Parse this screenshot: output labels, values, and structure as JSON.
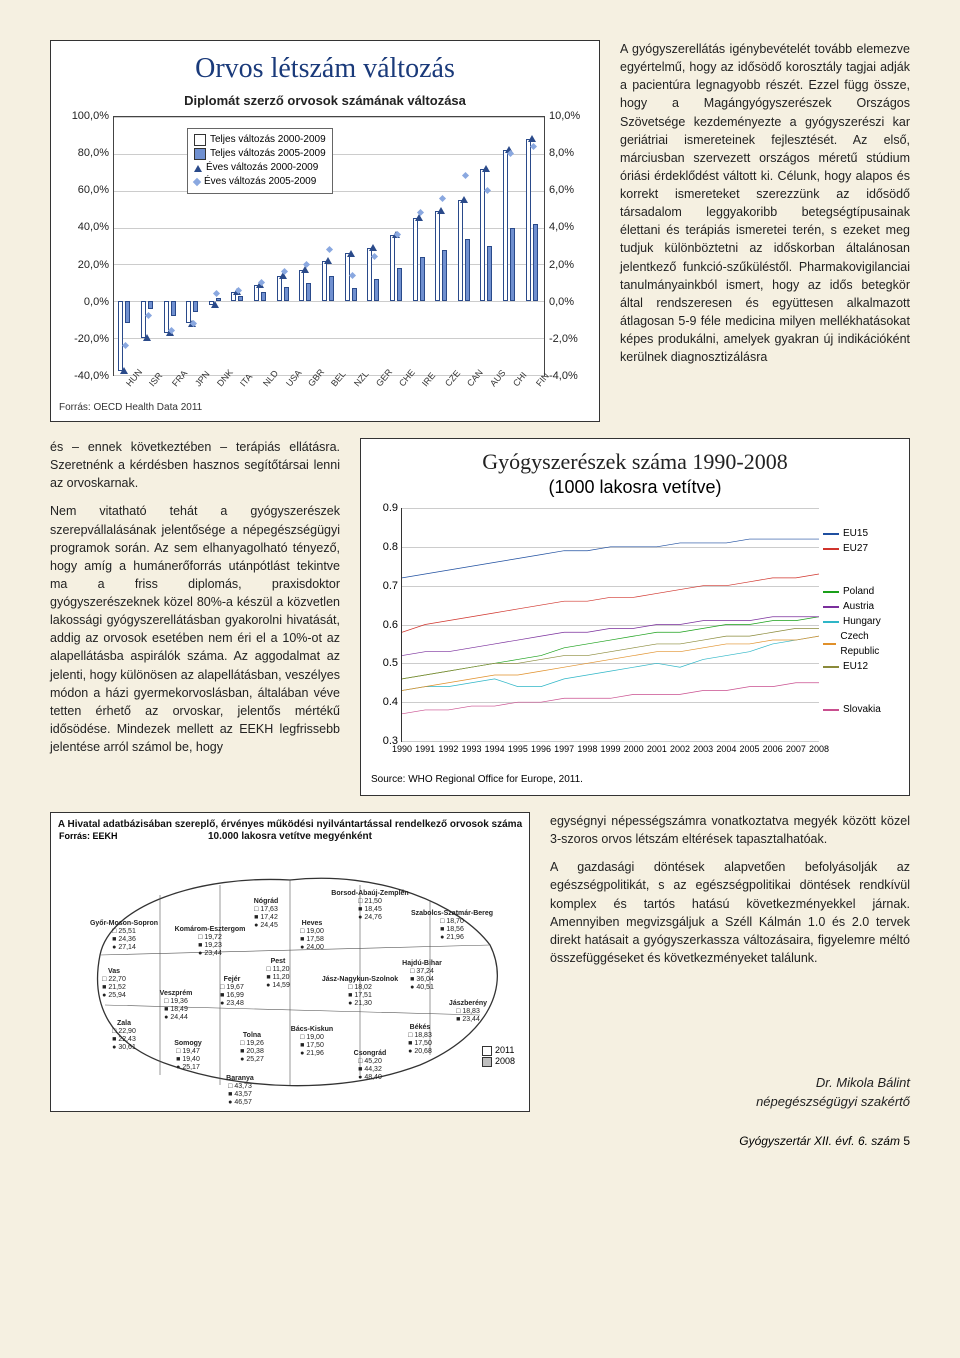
{
  "chart1": {
    "type": "bar+line",
    "title": "Orvos létszám változás",
    "subtitle": "Diplomát szerző orvosok számának változása",
    "title_color": "#1a3a7a",
    "legend": [
      {
        "label": "Teljes változás 2000-2009",
        "fill": "#ffffff",
        "marker": "square"
      },
      {
        "label": "Teljes változás 2005-2009",
        "fill": "#7090d0",
        "marker": "square"
      },
      {
        "label": "Éves változás 2000-2009",
        "fill": "none",
        "marker": "triangle"
      },
      {
        "label": "Éves változás 2005-2009",
        "fill": "none",
        "marker": "diamond"
      }
    ],
    "left_axis": {
      "min": -40,
      "max": 100,
      "step": 20,
      "ticks": [
        "100,0%",
        "80,0%",
        "60,0%",
        "40,0%",
        "20,0%",
        "0,0%",
        "-20,0%",
        "-40,0%"
      ],
      "suffix": "%"
    },
    "right_axis": {
      "min": -4,
      "max": 10,
      "step": 2,
      "ticks": [
        "10,0%",
        "8,0%",
        "6,0%",
        "4,0%",
        "2,0%",
        "0,0%",
        "-2,0%",
        "-4,0%"
      ],
      "suffix": "%"
    },
    "categories": [
      "HUN",
      "ISR",
      "FRA",
      "JPN",
      "DNK",
      "ITA",
      "NLD",
      "USA",
      "GBR",
      "BEL",
      "NZL",
      "GER",
      "CHE",
      "IRE",
      "CZE",
      "CAN",
      "AUS",
      "CHI",
      "FIN"
    ],
    "bars_2000_2009": [
      -38,
      -20,
      -17,
      -12,
      -2,
      5,
      9,
      14,
      17,
      22,
      26,
      29,
      36,
      45,
      49,
      55,
      72,
      82,
      88
    ],
    "bars_2005_2009": [
      -12,
      -4,
      -8,
      -6,
      2,
      3,
      5,
      8,
      10,
      14,
      7,
      12,
      18,
      24,
      28,
      34,
      30,
      40,
      42
    ],
    "annual_2000_2009": [
      -3.8,
      -2.0,
      -1.7,
      -1.2,
      -0.2,
      0.5,
      0.9,
      1.4,
      1.7,
      2.2,
      2.6,
      2.9,
      3.6,
      4.5,
      4.9,
      5.5,
      7.2,
      8.2,
      8.8
    ],
    "annual_2005_2009": [
      -2.4,
      -0.8,
      -1.6,
      -1.2,
      0.4,
      0.6,
      1.0,
      1.6,
      2.0,
      2.8,
      1.4,
      2.4,
      3.6,
      4.8,
      5.6,
      6.8,
      6.0,
      8.0,
      8.4
    ],
    "bar_fill_2000": "#ffffff",
    "bar_fill_2005": "#7090d0",
    "bar_border": "#2a4a8a",
    "marker_triangle_color": "#2a4a8a",
    "marker_diamond_color": "#8aa8e0",
    "background": "#ffffff",
    "grid_color": "#cccccc",
    "source": "Forrás: OECD Health Data 2011"
  },
  "text_right": "A gyógyszerellátás igénybevételét tovább elemezve egyértelmű, hogy az idősödő korosztály tagjai adják a pacientúra legnagyobb részét. Ezzel függ össze, hogy a Magángyógyszerészek Országos Szövetsége kezdeményezte a gyógyszerészi kar geriátriai ismereteinek fejlesztését. Az első, márciusban szervezett országos méretű stúdium óriási érdeklődést váltott ki. Célunk, hogy alapos és korrekt ismereteket szerezzünk az idősödő társadalom leggyakoribb betegségtípusainak élettani és terápiás ismeretei terén, s ezeket meg tudjuk különböztetni az időskorban általánosan jelentkező funkció-szűküléstől. Pharmakovigilanciai tanulmányainkból ismert, hogy az idős betegkör által rendszeresen és együttesen alkalmazott átlagosan 5-9 féle medicina milyen mellékhatásokat képes produkálni, amelyek gyakran új indikációként kerülnek diagnosztizálásra",
  "text_left_1": "és – ennek következtében – terápiás ellátásra. Szeretnénk a kérdésben hasznos segítőtársai lenni az orvoskarnak.",
  "text_left_2": "Nem vitatható tehát a gyógyszerészek szerepvállalásának jelentősége a népegészségügyi programok során. Az sem elhanyagolható tényező, hogy amíg a humánerőforrás utánpótlást tekintve ma a friss diplomás, praxisdoktor gyógyszerészeknek közel 80%-a készül a közvetlen lakossági gyógyszerellátásban gyakorolni hivatását, addig az orvosok esetében nem éri el a 10%-ot az alapellátásba aspirálók száma. Az aggodalmat az jelenti, hogy különösen az alapellátásban, veszélyes módon a házi gyermekorvoslásban, általában véve tetten érhető az orvoskar, jelentős mértékű idősödése. Mindezek mellett az EEKH legfrissebb jelentése arról számol be, hogy",
  "chart2": {
    "type": "line",
    "title": "Gyógyszerészek száma 1990-2008",
    "subtitle": "(1000 lakosra vetítve)",
    "ylim": [
      0.3,
      0.9
    ],
    "yticks": [
      "0.3",
      "0.4",
      "0.5",
      "0.6",
      "0.7",
      "0.8",
      "0.9"
    ],
    "years": [
      "1990",
      "1991",
      "1992",
      "1993",
      "1994",
      "1995",
      "1996",
      "1997",
      "1998",
      "1999",
      "2000",
      "2001",
      "2002",
      "2003",
      "2004",
      "2005",
      "2006",
      "2007",
      "2008"
    ],
    "series": [
      {
        "name": "EU15",
        "color": "#1f4fa0",
        "values": [
          0.72,
          0.73,
          0.74,
          0.75,
          0.76,
          0.77,
          0.78,
          0.79,
          0.79,
          0.8,
          0.8,
          0.8,
          0.81,
          0.81,
          0.81,
          0.82,
          0.82,
          0.82,
          0.82
        ]
      },
      {
        "name": "EU27",
        "color": "#d0342c",
        "values": [
          0.58,
          0.6,
          0.61,
          0.62,
          0.63,
          0.64,
          0.65,
          0.66,
          0.66,
          0.67,
          0.67,
          0.68,
          0.69,
          0.7,
          0.7,
          0.71,
          0.72,
          0.72,
          0.73
        ]
      },
      {
        "name": "Poland",
        "color": "#1aa01a",
        "values": [
          0.46,
          0.47,
          0.48,
          0.49,
          0.5,
          0.51,
          0.52,
          0.54,
          0.55,
          0.56,
          0.57,
          0.58,
          0.58,
          0.59,
          0.6,
          0.6,
          0.61,
          0.61,
          0.62
        ]
      },
      {
        "name": "Austria",
        "color": "#7a2f9c",
        "values": [
          0.52,
          0.53,
          0.53,
          0.54,
          0.55,
          0.56,
          0.57,
          0.58,
          0.58,
          0.59,
          0.59,
          0.6,
          0.6,
          0.61,
          0.61,
          0.61,
          0.62,
          0.62,
          0.62
        ]
      },
      {
        "name": "Hungary",
        "color": "#2fb6c7",
        "values": [
          0.43,
          0.44,
          0.44,
          0.45,
          0.46,
          0.44,
          0.44,
          0.46,
          0.47,
          0.48,
          0.49,
          0.5,
          0.49,
          0.51,
          0.52,
          0.53,
          0.55,
          0.56,
          0.57
        ]
      },
      {
        "name": "Czech Republic",
        "color": "#e0902a",
        "values": [
          0.43,
          0.44,
          0.45,
          0.46,
          0.47,
          0.47,
          0.48,
          0.49,
          0.5,
          0.51,
          0.52,
          0.53,
          0.53,
          0.54,
          0.55,
          0.55,
          0.56,
          0.56,
          0.57
        ]
      },
      {
        "name": "EU12",
        "color": "#8a8a3a",
        "values": [
          0.46,
          0.47,
          0.48,
          0.49,
          0.5,
          0.5,
          0.51,
          0.52,
          0.52,
          0.53,
          0.54,
          0.55,
          0.55,
          0.56,
          0.57,
          0.57,
          0.58,
          0.59,
          0.59
        ]
      },
      {
        "name": "Slovakia",
        "color": "#c94f8f",
        "values": [
          0.37,
          0.38,
          0.38,
          0.39,
          0.39,
          0.4,
          0.4,
          0.41,
          0.41,
          0.41,
          0.42,
          0.42,
          0.42,
          0.43,
          0.43,
          0.44,
          0.44,
          0.45,
          0.45
        ]
      }
    ],
    "grid_color": "#cccccc",
    "source": "Source: WHO Regional Office for Europe, 2011."
  },
  "map": {
    "title": "A Hivatal adatbázisában szereplő, érvényes működési nyilvántartással rendelkező orvosok száma 10.000 lakosra vetítve megyénként",
    "source_label": "Forrás: EEKH",
    "legend": [
      {
        "label": "2011",
        "fill": "#ffffff"
      },
      {
        "label": "2008",
        "fill": "#bfbfbf"
      }
    ],
    "counties": [
      {
        "name": "Nógrád",
        "v": [
          "17,63",
          "17,42",
          "24,45"
        ]
      },
      {
        "name": "Borsod-Abaúj-Zemplén",
        "v": [
          "21,50",
          "18,45",
          "24,76"
        ]
      },
      {
        "name": "Szabolcs-Szatmár-Bereg",
        "v": [
          "18,70",
          "18,56",
          "21,96"
        ]
      },
      {
        "name": "Győr-Moson-Sopron",
        "v": [
          "25,51",
          "24,36",
          "27,14"
        ]
      },
      {
        "name": "Komárom-Esztergom",
        "v": [
          "19,72",
          "19,23",
          "23,44"
        ]
      },
      {
        "name": "Heves",
        "v": [
          "19,00",
          "17,58",
          "24,00"
        ]
      },
      {
        "name": "Vas",
        "v": [
          "22,70",
          "21,52",
          "25,94"
        ]
      },
      {
        "name": "Veszprém",
        "v": [
          "19,36",
          "18,49",
          "24,44"
        ]
      },
      {
        "name": "Fejér",
        "v": [
          "19,67",
          "16,99",
          "23,48"
        ]
      },
      {
        "name": "Pest",
        "v": [
          "11,20",
          "11,20",
          "14,59"
        ]
      },
      {
        "name": "Hajdú-Bihar",
        "v": [
          "37,24",
          "36,04",
          "40,51"
        ]
      },
      {
        "name": "Jász-Nagykun-Szolnok",
        "v": [
          "18,02",
          "17,51",
          "21,30"
        ]
      },
      {
        "name": "Zala",
        "v": [
          "22,90",
          "22,43",
          "30,61"
        ]
      },
      {
        "name": "Somogy",
        "v": [
          "19,47",
          "19,40",
          "25,17"
        ]
      },
      {
        "name": "Tolna",
        "v": [
          "19,26",
          "20,38",
          "25,27"
        ]
      },
      {
        "name": "Bács-Kiskun",
        "v": [
          "19,00",
          "17,50",
          "21,96"
        ]
      },
      {
        "name": "Békés",
        "v": [
          "18,83",
          "17,50",
          "20,68"
        ]
      },
      {
        "name": "Csongrád",
        "v": [
          "45,20",
          "44,32",
          "48,40"
        ]
      },
      {
        "name": "Baranya",
        "v": [
          "43,73",
          "43,57",
          "46,57"
        ]
      },
      {
        "name": "Jászberény",
        "v": [
          "18,83",
          "23,44"
        ]
      }
    ]
  },
  "text_bottom_1": "egységnyi népességszámra vonatkoztatva megyék között közel 3-szoros orvos létszám eltérések tapasztalhatóak.",
  "text_bottom_2": "A gazdasági döntések alapvetően befolyásolják az egészségpolitikát, s az egészségpolitikai döntések rendkívül komplex és tartós hatású következményekkel járnak. Amennyiben megvizsgáljuk a Széll Kálmán 1.0 és 2.0 tervek direkt hatásait a gyógyszerkassza változásaira, figyelemre méltó összefüggéseket és következményeket találunk.",
  "signature_name": "Dr. Mikola Bálint",
  "signature_title": "népegészségügyi szakértő",
  "footer": "Gyógyszertár XII. évf. 6. szám",
  "page_num": "5"
}
